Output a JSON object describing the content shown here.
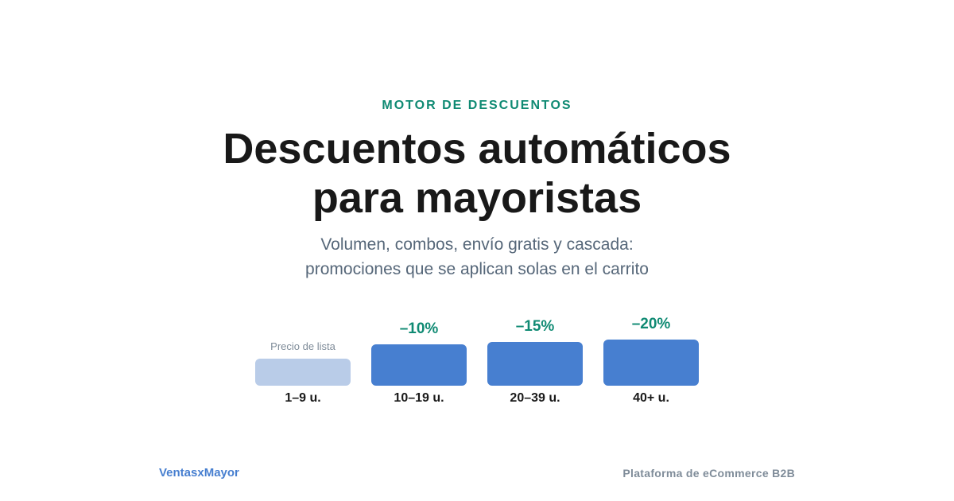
{
  "header": {
    "eyebrow": "MOTOR DE DESCUENTOS",
    "title_line1": "Descuentos automáticos",
    "title_line2": "para mayoristas",
    "subtitle_line1": "Volumen, combos, envío gratis y cascada:",
    "subtitle_line2": "promociones que se aplican solas en el carrito"
  },
  "tiers": [
    {
      "label": "Precio de lista",
      "quantity": "1–9 u.",
      "discount_percent": 0
    },
    {
      "label": "–10%",
      "quantity": "10–19 u.",
      "discount_percent": 10
    },
    {
      "label": "–15%",
      "quantity": "20–39 u.",
      "discount_percent": 15
    },
    {
      "label": "–20%",
      "quantity": "40+ u.",
      "discount_percent": 20
    }
  ],
  "footer": {
    "brand": "VentasxMayor",
    "tagline": "Plataforma de eCommerce B2B"
  },
  "colors": {
    "accent_green": "#0f8a73",
    "bar_blue": "#477fd0",
    "bar_base": "#b9cce8",
    "headline": "#191919",
    "muted": "#7f8c99"
  }
}
